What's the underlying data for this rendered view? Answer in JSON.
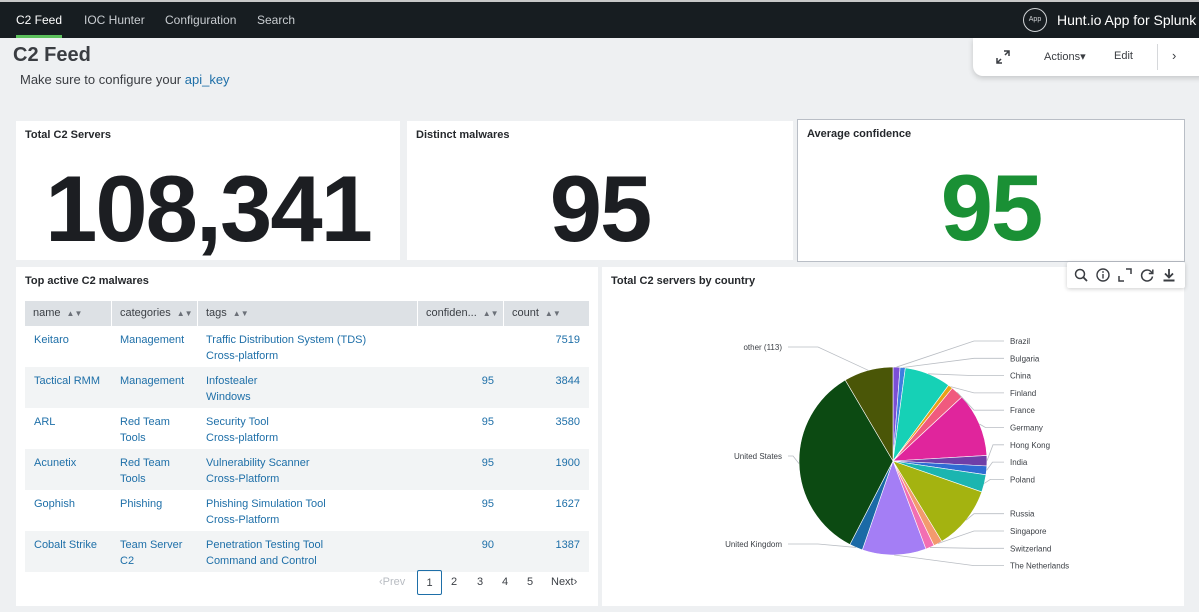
{
  "nav": {
    "items": [
      "C2 Feed",
      "IOC Hunter",
      "Configuration",
      "Search"
    ],
    "app_badge": "App",
    "app_title": "Hunt.io App for Splunk"
  },
  "header": {
    "title": "C2 Feed",
    "subtitle_prefix": "Make sure to configure your ",
    "subtitle_link": "api_key"
  },
  "action_bar": {
    "actions_label": "Actions▾",
    "edit_label": "Edit"
  },
  "singles": [
    {
      "title": "Total C2 Servers",
      "value": "108,341"
    },
    {
      "title": "Distinct malwares",
      "value": "95"
    },
    {
      "title": "Average confidence",
      "value": "95",
      "color": "#1a9035"
    }
  ],
  "table": {
    "title": "Top active C2 malwares",
    "columns": [
      "name",
      "categories",
      "tags",
      "confiden...",
      "count"
    ],
    "rows": [
      {
        "name": "Keitaro",
        "categories": [
          "Management"
        ],
        "tags": [
          "Traffic Distribution System (TDS)",
          "Cross-platform"
        ],
        "confidence": "",
        "count": "7519"
      },
      {
        "name": "Tactical RMM",
        "categories": [
          "Management"
        ],
        "tags": [
          "Infostealer",
          "Windows"
        ],
        "confidence": "95",
        "count": "3844"
      },
      {
        "name": "ARL",
        "categories": [
          "Red Team",
          "Tools"
        ],
        "tags": [
          "Security Tool",
          "Cross-platform"
        ],
        "confidence": "95",
        "count": "3580"
      },
      {
        "name": "Acunetix",
        "categories": [
          "Red Team",
          "Tools"
        ],
        "tags": [
          "Vulnerability Scanner",
          "Cross-Platform"
        ],
        "confidence": "95",
        "count": "1900"
      },
      {
        "name": "Gophish",
        "categories": [
          "Phishing"
        ],
        "tags": [
          "Phishing Simulation Tool",
          "Cross-Platform"
        ],
        "confidence": "95",
        "count": "1627"
      },
      {
        "name": "Cobalt Strike",
        "categories": [
          "Team Server",
          "C2"
        ],
        "tags": [
          "Penetration Testing Tool",
          "Command and Control"
        ],
        "confidence": "90",
        "count": "1387"
      }
    ],
    "pagination": {
      "prev": "‹Prev",
      "pages": [
        "1",
        "2",
        "3",
        "4",
        "5"
      ],
      "current": "1",
      "next": "Next›"
    }
  },
  "chart_data": {
    "type": "pie",
    "title": "Total C2 servers by country",
    "slices": [
      {
        "label": "Brazil",
        "value": 1.2,
        "color": "#7b4fd6"
      },
      {
        "label": "Bulgaria",
        "value": 0.9,
        "color": "#3d7fe0"
      },
      {
        "label": "China",
        "value": 8.0,
        "color": "#16d1b6"
      },
      {
        "label": "Finland",
        "value": 0.8,
        "color": "#e8a118"
      },
      {
        "label": "France",
        "value": 2.2,
        "color": "#f05a7e"
      },
      {
        "label": "Germany",
        "value": 11.0,
        "color": "#e0259c"
      },
      {
        "label": "Hong Kong",
        "value": 1.8,
        "color": "#6f3fa8"
      },
      {
        "label": "India",
        "value": 1.5,
        "color": "#2f6cd3"
      },
      {
        "label": "Poland",
        "value": 3.0,
        "color": "#1bb5b0"
      },
      {
        "label": "Russia",
        "value": 11.0,
        "color": "#a4b310"
      },
      {
        "label": "Singapore",
        "value": 1.5,
        "color": "#f39a6e"
      },
      {
        "label": "Switzerland",
        "value": 1.5,
        "color": "#f26fb3"
      },
      {
        "label": "The Netherlands",
        "value": 11.0,
        "color": "#a47ef5"
      },
      {
        "label": "United Kingdom",
        "value": 2.3,
        "color": "#1b6aa6"
      },
      {
        "label": "United States",
        "value": 34.0,
        "color": "#0c4a12"
      },
      {
        "label": "other (113)",
        "value": 8.5,
        "color": "#4a5607"
      }
    ]
  }
}
